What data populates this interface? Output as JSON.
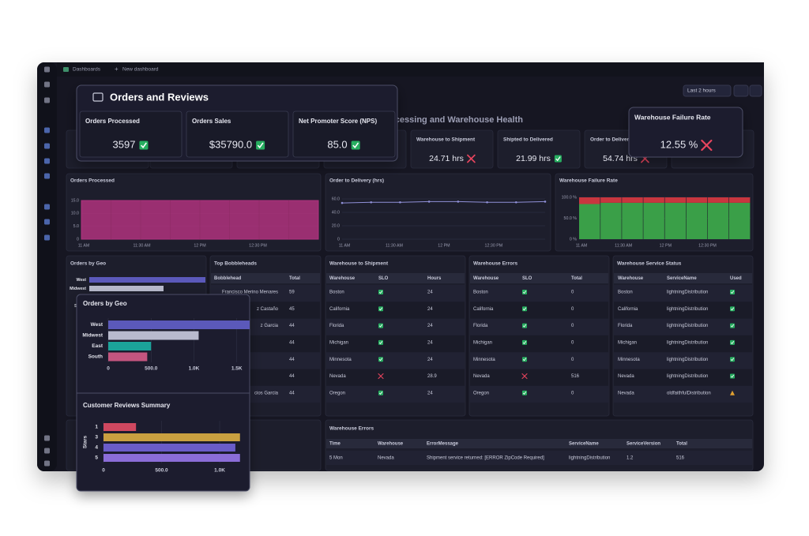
{
  "topbar": {
    "breadcrumb": "Dashboards",
    "new_button": "New dashboard",
    "timeframe": "Last 2 hours"
  },
  "dashboard": {
    "title": "Order Processing and Warehouse Health",
    "kpis": [
      {
        "title": "Warehouse to Shipment",
        "value": "24.71 hrs",
        "ok": false
      },
      {
        "title": "Shipted to Delivered",
        "value": "21.99 hrs",
        "ok": true
      },
      {
        "title": "Order to Delivery",
        "value": "54.74 hrs",
        "ok": false
      }
    ],
    "orders_processed": {
      "type": "area",
      "title": "Orders Processed",
      "color": "#b0337e",
      "values": [
        15,
        15,
        15,
        15,
        15,
        15,
        15,
        15
      ],
      "ylim": [
        0,
        15
      ],
      "yticks": [
        0,
        {
          "value": 5,
          "label": "5.0"
        },
        {
          "value": 10,
          "label": "10.0"
        },
        {
          "value": 15,
          "label": "15.0"
        }
      ],
      "xticks": [
        "11 AM",
        "11:30 AM",
        "12 PM",
        "12:30 PM"
      ]
    },
    "order_to_delivery": {
      "type": "line",
      "title": "Order to Delivery (hrs)",
      "color": "#9090d8",
      "values": [
        54,
        55,
        55,
        56,
        56,
        55,
        55,
        56
      ],
      "ylim": [
        0,
        60
      ],
      "yticks": [
        0,
        {
          "value": 20,
          "label": "20.0"
        },
        {
          "value": 40,
          "label": "40.0"
        },
        {
          "value": 60,
          "label": "60.0"
        }
      ],
      "xticks": [
        "11 AM",
        "11:30 AM",
        "12 PM",
        "12:30 PM"
      ]
    },
    "failure_rate": {
      "type": "stacked_bar",
      "title": "Warehouse Failure Rate",
      "ylim": [
        0,
        100
      ],
      "series": [
        {
          "color": "#3a9f48",
          "values": [
            84,
            87,
            87,
            87,
            87,
            87,
            87,
            87
          ]
        },
        {
          "color": "#c8363f",
          "values": [
            16,
            13,
            13,
            13,
            13,
            13,
            13,
            13
          ]
        }
      ],
      "yticks": [
        {
          "value": 0,
          "label": "0 %"
        },
        {
          "value": 50,
          "label": "50.0 %"
        },
        {
          "value": 100,
          "label": "100.0 %"
        }
      ],
      "xticks": [
        "11 AM",
        "11:30 AM",
        "12 PM",
        "12:30 PM"
      ]
    },
    "top_bobbleheads": {
      "title": "Top Bobbleheads",
      "columns": [
        "Bobblehead",
        "Total"
      ],
      "rows": [
        [
          "Francisco Merino Menares",
          59
        ],
        [
          "z Castaño",
          45
        ],
        [
          "z Garcia",
          44
        ],
        [
          null,
          44
        ],
        [
          null,
          44
        ],
        [
          null,
          44
        ],
        [
          "cios Garcia",
          44
        ]
      ]
    },
    "warehouse_to_shipment": {
      "title": "Warehouse to Shipment",
      "columns": [
        "Warehouse",
        "SLO",
        "Hours"
      ],
      "rows": [
        [
          "Boston",
          true,
          24
        ],
        [
          "California",
          true,
          24
        ],
        [
          "Florida",
          true,
          24
        ],
        [
          "Michigan",
          true,
          24
        ],
        [
          "Minnesota",
          true,
          24
        ],
        [
          "Nevada",
          false,
          28.9
        ],
        [
          "Oregon",
          true,
          24
        ]
      ]
    },
    "warehouse_errors": {
      "title": "Warehouse Errors",
      "columns": [
        "Warehouse",
        "SLO",
        "Total"
      ],
      "rows": [
        [
          "Boston",
          true,
          0
        ],
        [
          "California",
          true,
          0
        ],
        [
          "Florida",
          true,
          0
        ],
        [
          "Michigan",
          true,
          0
        ],
        [
          "Minnesota",
          true,
          0
        ],
        [
          "Nevada",
          false,
          516
        ],
        [
          "Oregon",
          true,
          0
        ]
      ]
    },
    "service_status": {
      "title": "Warehouse Service Status",
      "columns": [
        "Warehouse",
        "ServiceName",
        "Used"
      ],
      "rows": [
        [
          "Boston",
          "lightningDistribution",
          true
        ],
        [
          "California",
          "lightningDistribution",
          true
        ],
        [
          "Florida",
          "lightningDistribution",
          true
        ],
        [
          "Michigan",
          "lightningDistribution",
          true
        ],
        [
          "Minnesota",
          "lightningDistribution",
          true
        ],
        [
          "Nevada",
          "lightningDistribution",
          true
        ],
        [
          "Nevada",
          "oldfaithfulDistribution",
          false
        ]
      ]
    },
    "error_log": {
      "title": "Warehouse Errors",
      "columns": [
        "Time",
        "Warehouse",
        "ErrorMessage",
        "ServiceName",
        "ServiceVersion",
        "Total"
      ],
      "rows": [
        [
          "5 Mon",
          "Nevada",
          "Shipment service returned: [ERROR ZipCode Required]",
          "lightningDistribution",
          "1.2",
          516
        ]
      ]
    }
  },
  "popups": {
    "orders_and_reviews": {
      "title": "Orders and Reviews",
      "kpis": [
        {
          "title": "Orders Processed",
          "value": "3597",
          "ok": true
        },
        {
          "title": "Orders Sales",
          "value": "$35790.0",
          "ok": true
        },
        {
          "title": "Net Promoter Score (NPS)",
          "value": "85.0",
          "ok": true
        }
      ]
    },
    "failure_rate": {
      "title": "Warehouse Failure Rate",
      "value": "12.55 %",
      "ok": false
    },
    "orders_by_geo": {
      "type": "hbar",
      "title": "Orders by Geo",
      "categories": [
        "West",
        "Midwest",
        "East",
        "South"
      ],
      "values": [
        1650,
        1055,
        500,
        455
      ],
      "colors": [
        "#5b59ba",
        "#b8bacd",
        "#1ba39a",
        "#c4557f"
      ],
      "xlim": [
        0,
        1650
      ],
      "xticks": [
        0,
        {
          "value": 500,
          "label": "500.0"
        },
        {
          "value": 1000,
          "label": "1.0K"
        },
        {
          "value": 1500,
          "label": "1.5K"
        }
      ]
    },
    "reviews": {
      "type": "hbar",
      "title": "Customer Reviews Summary",
      "y_label": "Stars",
      "categories": [
        "1",
        "3",
        "4",
        "5"
      ],
      "values": [
        280,
        1175,
        1135,
        1175
      ],
      "colors": [
        "#cf4860",
        "#c9a040",
        "#6a5cc8",
        "#8b6dd8"
      ],
      "xlim": [
        0,
        1180
      ],
      "xticks": [
        0,
        {
          "value": 500,
          "label": "500.0"
        },
        {
          "value": 1000,
          "label": "1.0K"
        }
      ]
    }
  }
}
